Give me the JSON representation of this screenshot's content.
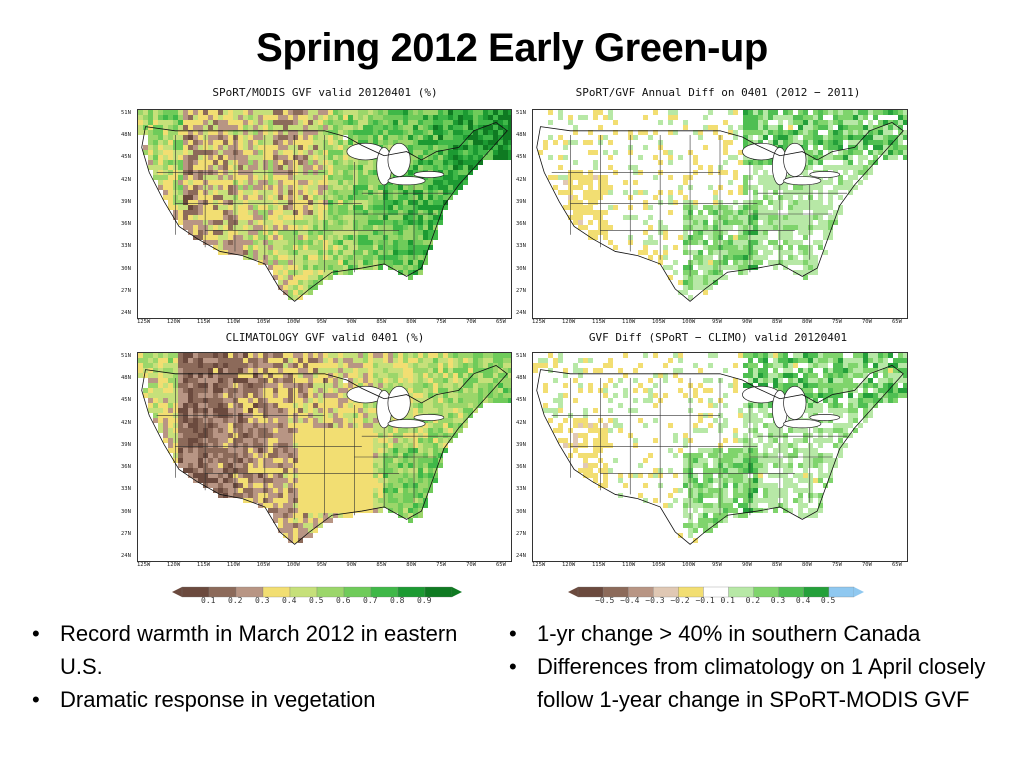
{
  "slide": {
    "title": "Spring 2012 Early Green-up"
  },
  "maps": [
    {
      "id": "tl",
      "title": "SPoRT/MODIS GVF valid 20120401 (%)",
      "style": "gvf"
    },
    {
      "id": "tr",
      "title": "SPoRT/GVF Annual Diff on 0401 (2012 − 2011)",
      "style": "diff"
    },
    {
      "id": "bl",
      "title": "CLIMATOLOGY GVF valid 0401 (%)",
      "style": "clim"
    },
    {
      "id": "br",
      "title": "GVF Diff (SPoRT − CLIMO) valid 20120401",
      "style": "diff2"
    }
  ],
  "lat_labels": [
    "51N",
    "48N",
    "45N",
    "42N",
    "39N",
    "36N",
    "33N",
    "30N",
    "27N",
    "24N"
  ],
  "lon_labels": [
    "125W",
    "120W",
    "115W",
    "110W",
    "105W",
    "100W",
    "95W",
    "90W",
    "85W",
    "80W",
    "75W",
    "70W",
    "65W"
  ],
  "colorbars": {
    "gvf": {
      "colors": [
        "#6b4a3e",
        "#8c6a5a",
        "#b89584",
        "#f2de72",
        "#c6e07a",
        "#9bd66a",
        "#6fcb5a",
        "#3fb848",
        "#1c9a32",
        "#0f7a22"
      ],
      "labels": [
        "0.1",
        "0.2",
        "0.3",
        "0.4",
        "0.5",
        "0.6",
        "0.7",
        "0.8",
        "0.9"
      ]
    },
    "diff": {
      "colors": [
        "#6b4a3e",
        "#8c6a5a",
        "#b89584",
        "#e0c8b4",
        "#f2de72",
        "#ffffff",
        "#b7e8a6",
        "#7fd46c",
        "#4fbf52",
        "#24a03a",
        "#8fc8f0"
      ],
      "labels": [
        "−0.5",
        "−0.4",
        "−0.3",
        "−0.2",
        "−0.1",
        "0.1",
        "0.2",
        "0.3",
        "0.4",
        "0.5"
      ]
    }
  },
  "bullets_left": [
    "Record warmth in March 2012 in eastern U.S.",
    "Dramatic response in vegetation"
  ],
  "bullets_right": [
    "1-yr change > 40% in southern Canada",
    "Differences from climatology on 1 April closely follow 1-year change in SPoRT-MODIS GVF"
  ]
}
